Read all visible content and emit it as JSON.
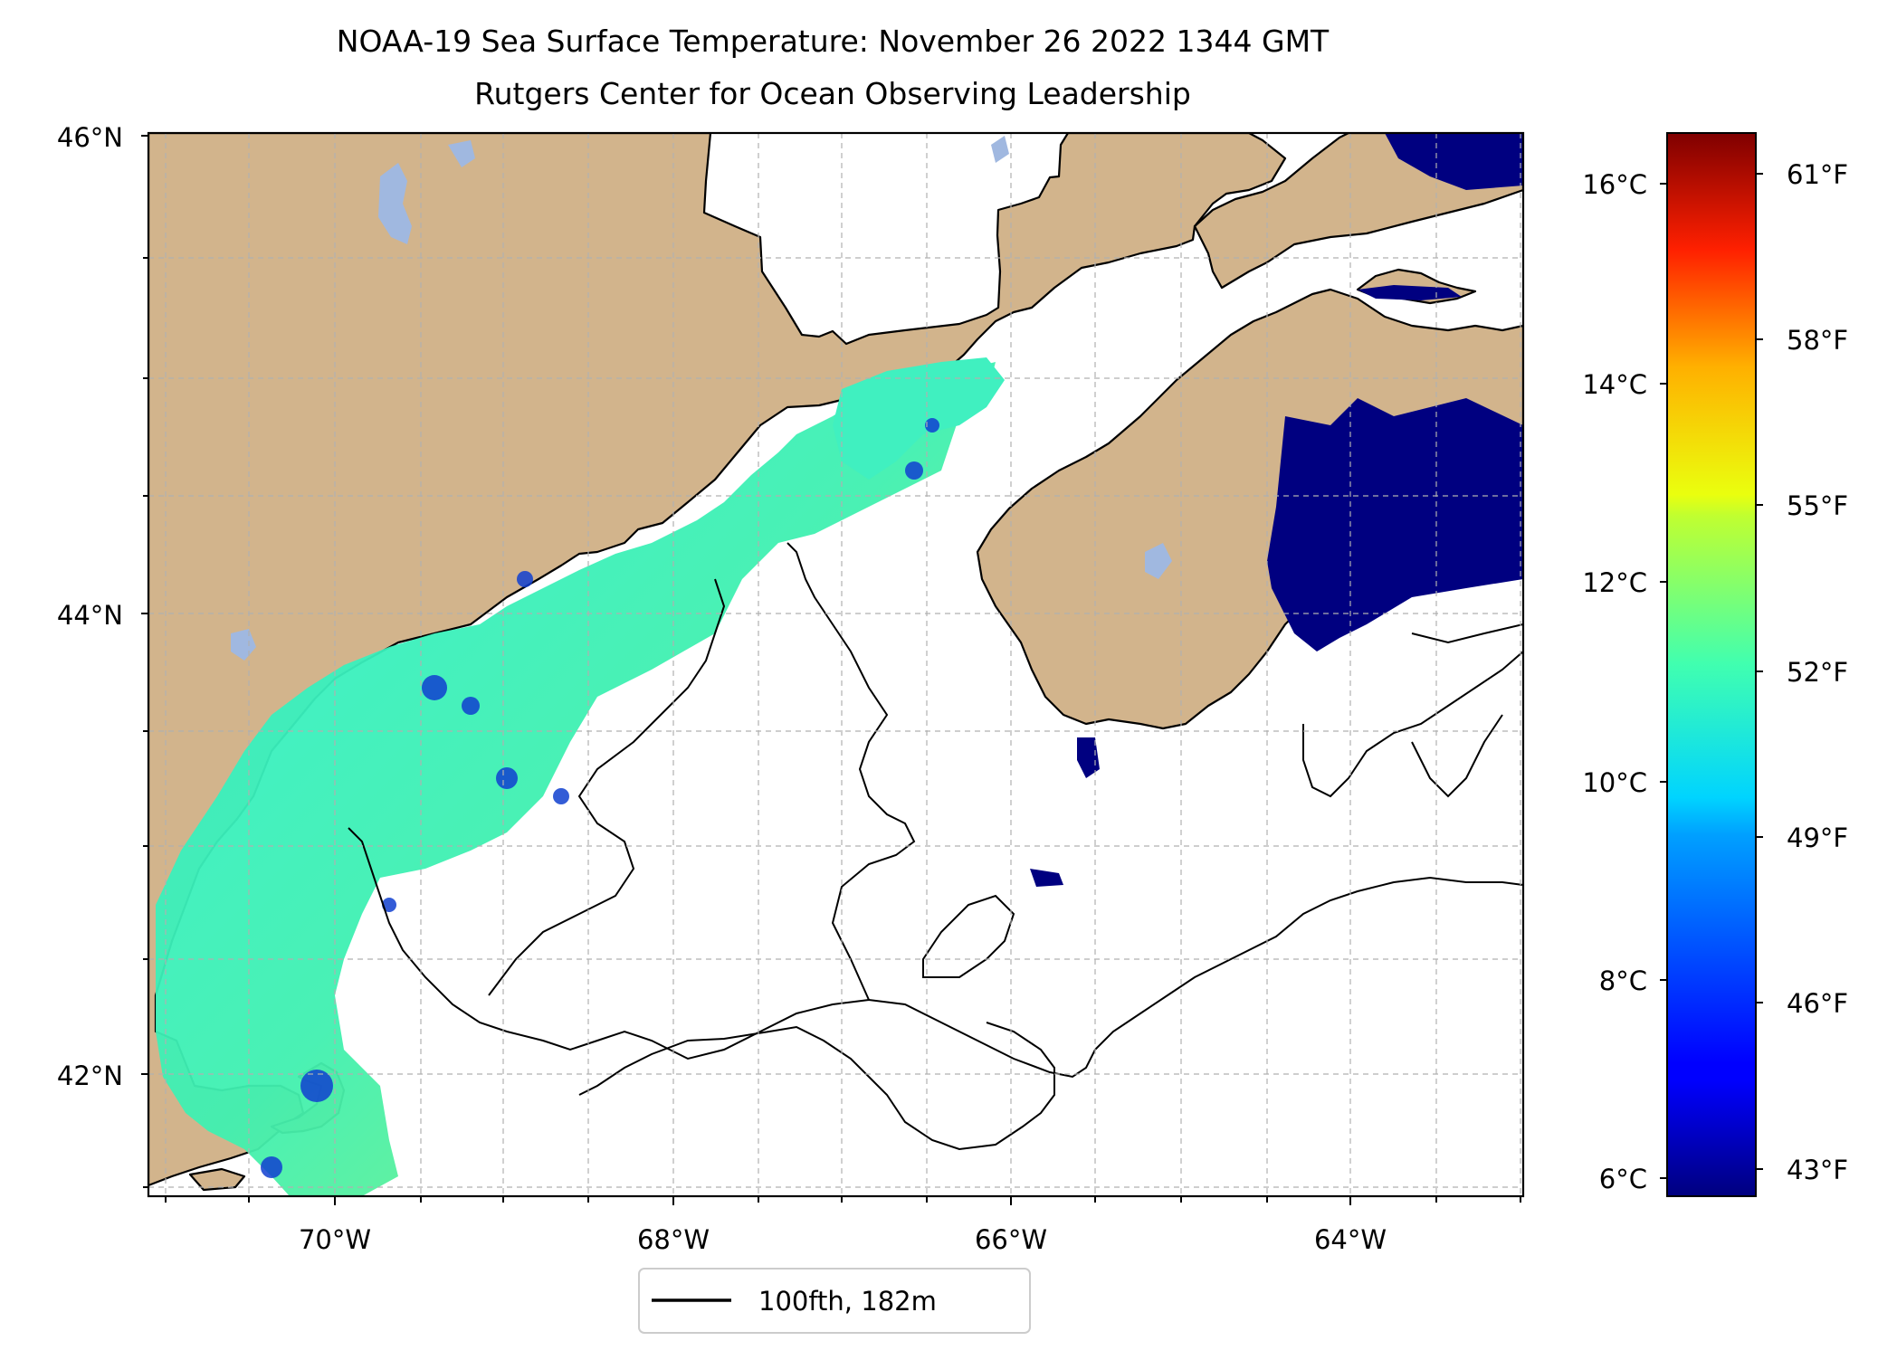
{
  "title": "NOAA-19 Sea Surface Temperature: November 26 2022 1344 GMT",
  "subtitle": "Rutgers Center for Ocean Observing Leadership",
  "map": {
    "lat_ticks": [
      "46°N",
      "44°N",
      "42°N"
    ],
    "lon_ticks": [
      "70°W",
      "68°W",
      "66°W",
      "64°W"
    ],
    "lat_range": [
      41.5,
      46.0
    ],
    "lon_range": [
      -71.1,
      -63.0
    ],
    "colors": {
      "land": "#d2b48c",
      "lake": "#a0b8e0",
      "coast": "#000000",
      "grid": "#b0b0b0",
      "no_data": "#ffffff"
    }
  },
  "legend": {
    "label": "100fth, 182m"
  },
  "colorbar": {
    "colormap": "jet",
    "range_c": [
      6,
      16.5
    ],
    "celsius_ticks": [
      "16°C",
      "14°C",
      "12°C",
      "10°C",
      "8°C",
      "6°C"
    ],
    "fahrenheit_ticks": [
      "61°F",
      "58°F",
      "55°F",
      "52°F",
      "49°F",
      "46°F",
      "43°F"
    ]
  }
}
